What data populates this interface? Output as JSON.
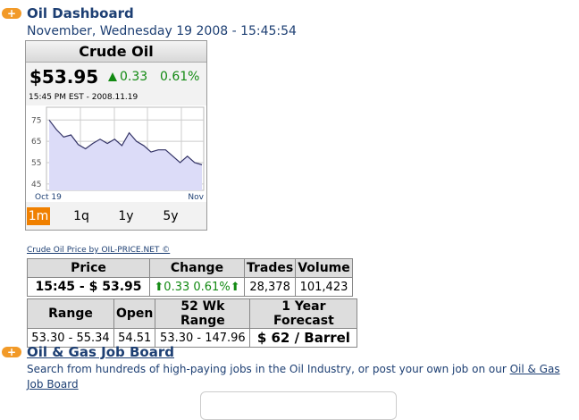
{
  "header": {
    "title": "Oil Dashboard",
    "date": "November, Wednesday 19 2008 - 15:45:54"
  },
  "widget": {
    "title": "Crude Oil",
    "price": "$53.95",
    "change": "0.33",
    "percent": "0.61%",
    "timestamp": "15:45 PM EST - 2008.11.19",
    "tabs": [
      "1m",
      "1q",
      "1y",
      "5y"
    ],
    "chart": {
      "type": "line",
      "categories": [
        "Oct 19",
        null,
        null,
        null,
        null,
        null,
        null,
        null,
        null,
        null,
        null,
        null,
        null,
        null,
        null,
        null,
        null,
        null,
        null,
        null,
        null,
        "Nov"
      ],
      "values": [
        75,
        70.5,
        67,
        68,
        63.5,
        61.5,
        64,
        66,
        64,
        66,
        63,
        69,
        65,
        63,
        60,
        61,
        61,
        58,
        55,
        58,
        55,
        54
      ],
      "color": "#333366",
      "ylim": [
        42,
        81
      ],
      "yticks": [
        45,
        55,
        65,
        75
      ],
      "grid": true
    }
  },
  "credit": "Crude Oil Price by OIL-PRICE.NET ©",
  "table": {
    "rows": [
      [
        "Price",
        "Change",
        "Trades",
        "Volume"
      ],
      [
        "15:45 - $ 53.95",
        "0.33 0.61%",
        "28,378",
        "101,423"
      ],
      [
        "Range",
        "Open",
        "52 Wk Range",
        "1 Year Forecast"
      ],
      [
        "53.30 - 55.34",
        "54.51",
        "53.30 - 147.96",
        "$ 62 / Barrel"
      ]
    ]
  },
  "jobs": {
    "title": "Oil & Gas Job Board",
    "text": "Search from hundreds of high-paying jobs in the Oil Industry, or post your own job on our",
    "link": "Oil & Gas Job Board"
  }
}
